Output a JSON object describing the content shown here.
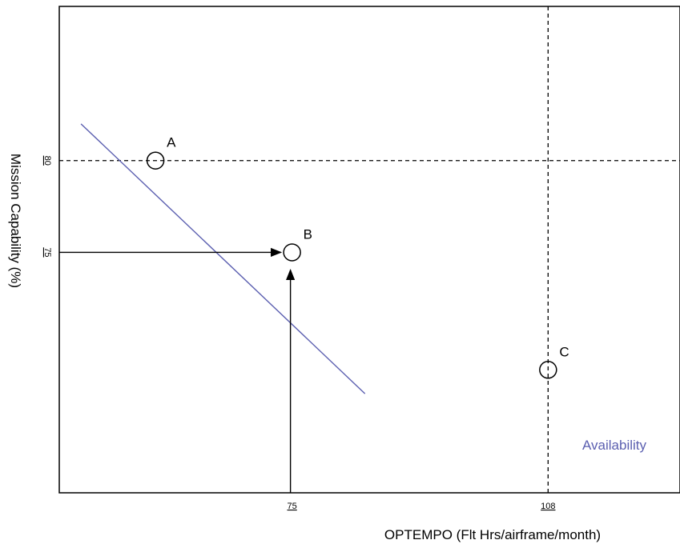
{
  "chart_data": {
    "type": "line",
    "xlabel": "OPTEMPO (Flt Hrs/airframe/month)",
    "ylabel": "Mission Capability (%)",
    "grid": false,
    "x_ticks": [
      {
        "value": 75,
        "label": "75"
      },
      {
        "value": 108,
        "label": "108"
      }
    ],
    "y_ticks": [
      {
        "value": 80,
        "label": "80"
      },
      {
        "value": 75,
        "label": "75"
      }
    ],
    "series": [
      {
        "name": "Availability",
        "color": "#5b5fb0",
        "x": [
          47.8,
          84.4
        ],
        "y": [
          82.0,
          67.3
        ]
      }
    ],
    "points": [
      {
        "label": "A",
        "x": 57.4,
        "y": 80
      },
      {
        "label": "B",
        "x": 75,
        "y": 75
      },
      {
        "label": "C",
        "x": 108,
        "y": 68.6
      }
    ],
    "reference_lines": [
      {
        "orientation": "horizontal",
        "value": 80,
        "style": "dashed"
      },
      {
        "orientation": "vertical",
        "value": 108,
        "style": "dashed"
      }
    ],
    "arrows": [
      {
        "from": "y-axis",
        "to": "B",
        "value": 75
      },
      {
        "from": "x-axis",
        "to": "B",
        "value": 75
      }
    ]
  }
}
